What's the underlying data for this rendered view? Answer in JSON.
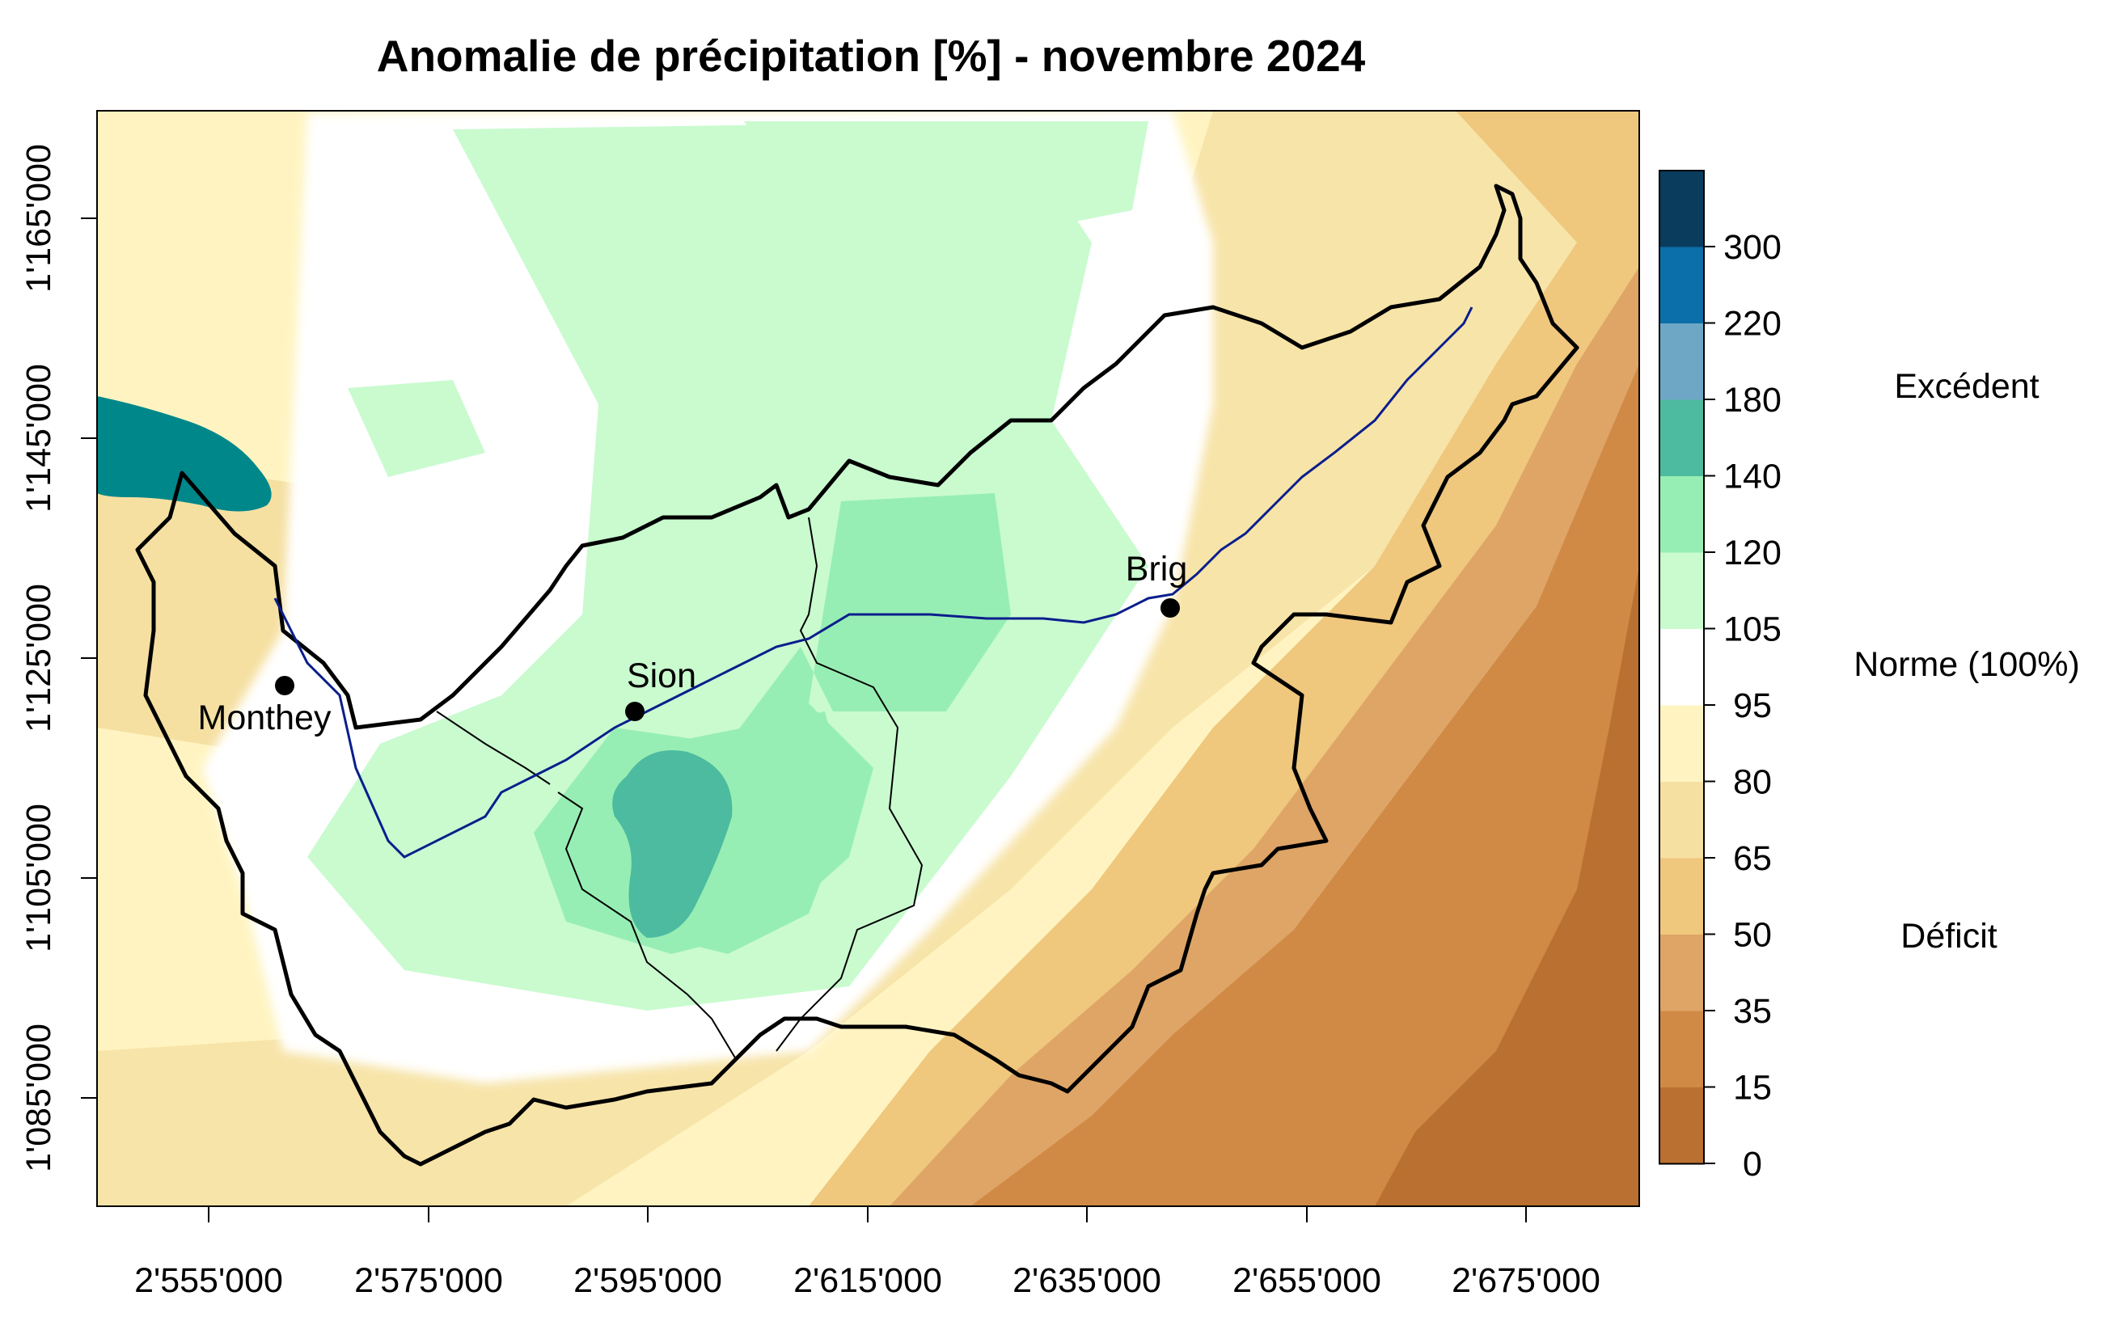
{
  "title": "Anomalie de précipitation [%] - novembre 2024",
  "axes": {
    "x_ticks": [
      "2'555'000",
      "2'575'000",
      "2'595'000",
      "2'615'000",
      "2'635'000",
      "2'655'000",
      "2'675'000"
    ],
    "y_ticks": [
      "1'085'000",
      "1'105'000",
      "1'125'000",
      "1'145'000",
      "1'165'000"
    ]
  },
  "cities": [
    {
      "name": "Monthey"
    },
    {
      "name": "Sion"
    },
    {
      "name": "Brig"
    }
  ],
  "legend": {
    "breaks": [
      "300",
      "220",
      "180",
      "140",
      "120",
      "105",
      "95",
      "80",
      "65",
      "50",
      "35",
      "15",
      "0"
    ],
    "colors": [
      "#0a3c5e",
      "#0b6faa",
      "#6ea7c6",
      "#4dbb9f",
      "#97eeb4",
      "#c9fbcf",
      "#ffffff",
      "#fff4c1",
      "#f5e0a2",
      "#efc77d",
      "#dea567",
      "#d08a45",
      "#b97030"
    ],
    "side_labels": {
      "excess": "Excédent",
      "norm": "Norme (100%)",
      "deficit": "Déficit"
    }
  },
  "map_colors": {
    "lake": "#00878a",
    "river": "#0a1e8c",
    "border": "#000000"
  }
}
